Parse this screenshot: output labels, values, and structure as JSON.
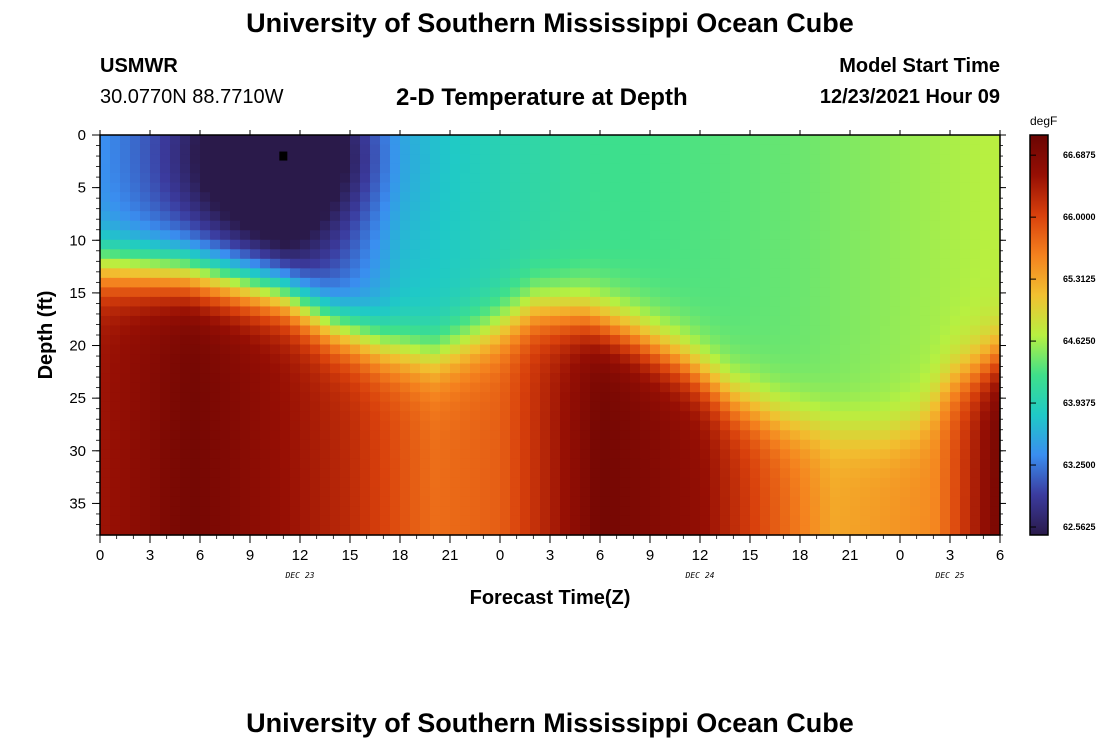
{
  "header": {
    "title": "University of Southern Mississippi Ocean Cube",
    "station": "USMWR",
    "coordinates": "30.0770N  88.7710W",
    "subtitle": "2-D Temperature at Depth",
    "model_start_label": "Model Start Time",
    "model_start_value": "12/23/2021 Hour 09"
  },
  "footer": {
    "title": "University of Southern Mississippi Ocean Cube"
  },
  "chart_data": {
    "type": "heatmap",
    "title": "2-D Temperature at Depth",
    "xlabel": "Forecast Time(Z)",
    "ylabel": "Depth (ft)",
    "x_unit": "forecast hour from 12/23/2021 00Z",
    "xlim": [
      0,
      54
    ],
    "ylim": [
      38,
      0
    ],
    "x_tick_values": [
      0,
      3,
      6,
      9,
      12,
      15,
      18,
      21,
      24,
      27,
      30,
      33,
      36,
      39,
      42,
      45,
      48,
      51,
      54
    ],
    "x_tick_labels": [
      "0",
      "3",
      "6",
      "9",
      "12",
      "15",
      "18",
      "21",
      "0",
      "3",
      "6",
      "9",
      "12",
      "15",
      "18",
      "21",
      "0",
      "3",
      "6"
    ],
    "y_ticks": [
      0,
      5,
      10,
      15,
      20,
      25,
      30,
      35
    ],
    "date_labels": [
      {
        "x": 12,
        "label": "DEC 23"
      },
      {
        "x": 36,
        "label": "DEC 24"
      },
      {
        "x": 51,
        "label": "DEC 25"
      }
    ],
    "marker": {
      "x": 11,
      "y": 2
    },
    "colorbar": {
      "unit": "degF",
      "min": 62.5625,
      "max": 67.0,
      "tick_values": [
        62.5625,
        63.25,
        63.9375,
        64.625,
        65.3125,
        66.0,
        66.6875
      ],
      "tick_labels": [
        "62.5625",
        "63.2500",
        "63.9375",
        "64.6250",
        "65.3125",
        "66.0000",
        "66.6875"
      ],
      "colors": [
        "#2a1a4a",
        "#3b3b9e",
        "#3a8ef0",
        "#1fc9c7",
        "#3fe08a",
        "#b8f040",
        "#f2c030",
        "#f4811e",
        "#d8400c",
        "#960f04",
        "#6a0503"
      ]
    },
    "thermocline_depth_ft": [
      {
        "x": 0,
        "depth": 12.5
      },
      {
        "x": 5,
        "depth": 13
      },
      {
        "x": 8,
        "depth": 14
      },
      {
        "x": 11,
        "depth": 15
      },
      {
        "x": 14,
        "depth": 18
      },
      {
        "x": 17,
        "depth": 20
      },
      {
        "x": 20,
        "depth": 21
      },
      {
        "x": 23,
        "depth": 19
      },
      {
        "x": 26,
        "depth": 16.5
      },
      {
        "x": 29,
        "depth": 17
      },
      {
        "x": 32,
        "depth": 19
      },
      {
        "x": 35,
        "depth": 21.5
      },
      {
        "x": 38,
        "depth": 25
      },
      {
        "x": 41,
        "depth": 27
      },
      {
        "x": 44,
        "depth": 28
      },
      {
        "x": 47,
        "depth": 28.5
      },
      {
        "x": 49,
        "depth": 27.5
      },
      {
        "x": 51,
        "depth": 23.5
      },
      {
        "x": 54,
        "depth": 21
      }
    ],
    "surface_cold_core": {
      "x": 11,
      "y": 2,
      "value": 62.6
    },
    "surface_temperature_degF": [
      {
        "x": 0,
        "value": 63.5
      },
      {
        "x": 11,
        "value": 62.6
      },
      {
        "x": 18,
        "value": 63.8
      },
      {
        "x": 30,
        "value": 64.3
      },
      {
        "x": 42,
        "value": 64.5
      },
      {
        "x": 54,
        "value": 64.8
      }
    ],
    "bottom_temperature_degF": [
      {
        "x": 0,
        "value": 66.5
      },
      {
        "x": 5.5,
        "value": 66.9
      },
      {
        "x": 15,
        "value": 66.3
      },
      {
        "x": 20,
        "value": 65.8
      },
      {
        "x": 24,
        "value": 65.9
      },
      {
        "x": 30,
        "value": 66.9
      },
      {
        "x": 36,
        "value": 66.6
      },
      {
        "x": 44,
        "value": 65.4
      },
      {
        "x": 50,
        "value": 65.6
      },
      {
        "x": 54,
        "value": 66.9
      }
    ]
  }
}
